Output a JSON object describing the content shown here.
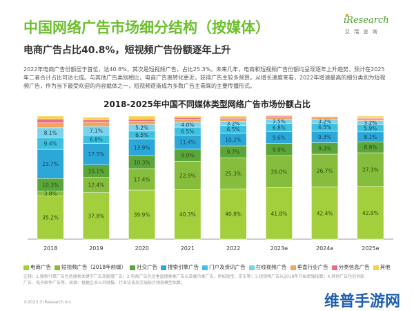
{
  "header": {
    "title": "中国网络广告市场细分结构（按媒体）",
    "subtitle": "电商广告占比40.8%，短视频广告份额逐年上升"
  },
  "logo": {
    "main": "iResearch",
    "sub": "艾 瑞 咨 询"
  },
  "body_text": "2022年电商广告份额居于首位，达40.8%，其次是短视频广告，占比25.3%。未来几年，电商和短视频广告份额均呈现逐年上升趋势，预计在2025年二者合计占比可达七成。与其他广告类别相比，电商广告离转化更近，获得广告主较多预算。从增长速度来看，2022年增速最高的细分类别为短视频广告，作为当下最受欢迎的内容载体之一，短视频逐渐成为多数广告主青睐的主要传播形式。",
  "chart_data": {
    "type": "bar",
    "stacked": true,
    "title": "2018-2025年中国不同媒体类型网络广告市场份额占比",
    "categories": [
      "2018",
      "2019",
      "2020",
      "2021",
      "2022",
      "2023e",
      "2024e",
      "2025e"
    ],
    "ylim": [
      0,
      100
    ],
    "series": [
      {
        "name": "电商广告",
        "color": "#a3cf3d",
        "values": [
          35.2,
          37.8,
          39.9,
          40.3,
          40.8,
          41.8,
          42.4,
          42.9
        ]
      },
      {
        "name": "短视频广告（2018年前缀）",
        "color": "#86bd3c",
        "values": [
          3.8,
          12.4,
          17.4,
          22.9,
          25.3,
          26.0,
          26.7,
          27.3
        ]
      },
      {
        "name": "社交广告",
        "color": "#5aa63a",
        "values": [
          10.3,
          10.1,
          10.3,
          9.9,
          9.7,
          9.9,
          9.3,
          8.9
        ]
      },
      {
        "name": "搜索引擎广告",
        "color": "#2ba8d8",
        "values": [
          23.7,
          17.5,
          13.9,
          11.4,
          10.2,
          9.6,
          9.3,
          8.1
        ]
      },
      {
        "name": "门户及资讯广告",
        "color": "#3ec1e0",
        "values": [
          9.4,
          6.8,
          6.5,
          6.5,
          6.5,
          6.8,
          6.5,
          5.9
        ]
      },
      {
        "name": "在线视频广告",
        "color": "#7ad3ea",
        "values": [
          8.1,
          7.1,
          5.2,
          4.0,
          3.2,
          3.5,
          3.2,
          3.2
        ]
      },
      {
        "name": "垂直行业广告",
        "color": "#f3a35c",
        "values": [
          4.0,
          3.3,
          2.6,
          2.5,
          2.2,
          1.9,
          1.7,
          1.6
        ]
      },
      {
        "name": "分类信息广告",
        "color": "#ee6b86",
        "values": [
          3.2,
          1.8,
          1.7,
          1.3,
          1.1,
          0.7,
          0.6,
          0.6
        ]
      },
      {
        "name": "其他",
        "color": "#f6d24a",
        "values": [
          2.3,
          2.2,
          2.5,
          1.2,
          1.0,
          0.8,
          0.3,
          1.5
        ]
      }
    ],
    "value_labels_shown": {
      "电商广告": [
        true,
        true,
        true,
        true,
        true,
        true,
        true,
        true
      ],
      "短视频广告（2018年前缀）": [
        true,
        true,
        true,
        true,
        true,
        true,
        true,
        true
      ],
      "社交广告": [
        true,
        true,
        true,
        true,
        true,
        true,
        true,
        true
      ],
      "搜索引擎广告": [
        true,
        true,
        true,
        true,
        true,
        true,
        true,
        true
      ],
      "门户及资讯广告": [
        true,
        true,
        true,
        true,
        true,
        true,
        true,
        true
      ],
      "在线视频广告": [
        true,
        true,
        true,
        true,
        true,
        true,
        true,
        true
      ],
      "垂直行业广告": [
        false,
        false,
        false,
        false,
        false,
        false,
        false,
        false
      ],
      "分类信息广告": [
        false,
        false,
        false,
        false,
        false,
        false,
        false,
        false
      ],
      "其他": [
        false,
        false,
        false,
        false,
        false,
        false,
        false,
        false
      ]
    }
  },
  "note": "注释：1.搜索引擎广告包括搜索关键字广告及联盟广告；2.电商广告包括垂直搜索类广告以及展示类广告，例如淘宝、京东等；3.短视频广告从2018年开始单独核算；4.其他广告包括导航广告、电子邮件广告等。来源：根据企业公开财报、行业访谈及艾瑞统计预测模型估算。",
  "copyright": "©2023.3 iResearch Inc.",
  "watermark": "维普手游网"
}
